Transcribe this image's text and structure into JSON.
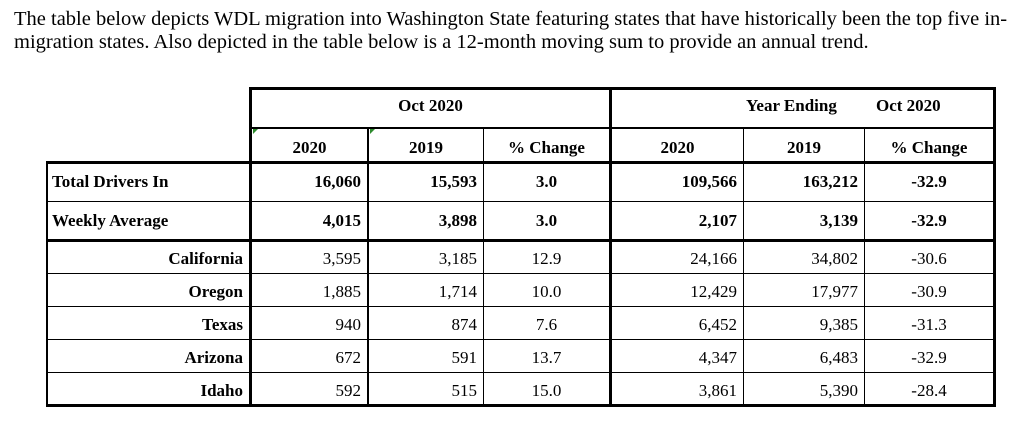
{
  "intro_text": "The table below depicts WDL migration into Washington State featuring states that have historically been the top five in-migration states. Also depicted in the table below is a 12-month moving sum to provide an annual trend.",
  "table": {
    "group_month": "Oct 2020",
    "group_year_ending": {
      "label": "Year Ending",
      "month": "Oct 2020"
    },
    "columns": [
      "2020",
      "2019",
      "% Change",
      "2020",
      "2019",
      "% Change"
    ],
    "summary_rows": [
      {
        "label": "Total Drivers In",
        "values": [
          "16,060",
          "15,593",
          "3.0",
          "109,566",
          "163,212",
          "-32.9"
        ]
      },
      {
        "label": "Weekly Average",
        "values": [
          "4,015",
          "3,898",
          "3.0",
          "2,107",
          "3,139",
          "-32.9"
        ]
      }
    ],
    "state_rows": [
      {
        "label": "California",
        "values": [
          "3,595",
          "3,185",
          "12.9",
          "24,166",
          "34,802",
          "-30.6"
        ]
      },
      {
        "label": "Oregon",
        "values": [
          "1,885",
          "1,714",
          "10.0",
          "12,429",
          "17,977",
          "-30.9"
        ]
      },
      {
        "label": "Texas",
        "values": [
          "940",
          "874",
          "7.6",
          "6,452",
          "9,385",
          "-31.3"
        ]
      },
      {
        "label": "Arizona",
        "values": [
          "672",
          "591",
          "13.7",
          "4,347",
          "6,483",
          "-32.9"
        ]
      },
      {
        "label": "Idaho",
        "values": [
          "592",
          "515",
          "15.0",
          "3,861",
          "5,390",
          "-28.4"
        ]
      }
    ]
  }
}
